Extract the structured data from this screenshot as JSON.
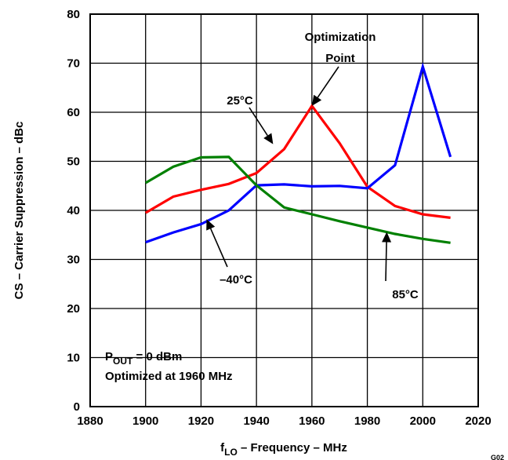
{
  "chart_data": {
    "type": "line",
    "xlabel_main": "f",
    "xlabel_sub": "LO",
    "xlabel_rest": " – Frequency – MHz",
    "ylabel": "CS – Carrier Suppression – dBc",
    "xlim": [
      1880,
      2020
    ],
    "ylim": [
      0,
      80
    ],
    "x_ticks": [
      1880,
      1900,
      1920,
      1940,
      1960,
      1980,
      2000,
      2020
    ],
    "y_ticks": [
      0,
      10,
      20,
      30,
      40,
      50,
      60,
      70,
      80
    ],
    "grid": true,
    "series": [
      {
        "name": "25°C",
        "color": "#ff0000",
        "x": [
          1900,
          1910,
          1920,
          1930,
          1940,
          1950,
          1960,
          1970,
          1980,
          1990,
          2000,
          2010
        ],
        "y": [
          39.5,
          42.8,
          44.2,
          45.4,
          47.6,
          52.5,
          61.3,
          53.7,
          44.8,
          40.9,
          39.2,
          38.5
        ]
      },
      {
        "name": "–40°C",
        "color": "#0000ff",
        "x": [
          1900,
          1910,
          1920,
          1930,
          1940,
          1950,
          1960,
          1970,
          1980,
          1990,
          2000,
          2010
        ],
        "y": [
          33.5,
          35.5,
          37.2,
          40.0,
          45.1,
          45.3,
          44.9,
          45.0,
          44.5,
          49.2,
          69.3,
          50.9
        ]
      },
      {
        "name": "85°C",
        "color": "#008000",
        "x": [
          1900,
          1910,
          1920,
          1930,
          1940,
          1950,
          1960,
          1970,
          1980,
          1990,
          2000,
          2010
        ],
        "y": [
          45.6,
          48.9,
          50.8,
          50.9,
          45.1,
          40.6,
          39.2,
          37.8,
          36.5,
          35.2,
          34.2,
          33.4
        ]
      }
    ],
    "annotations": {
      "optimization_line1": "Optimization",
      "optimization_line2": "Point",
      "label_25": "25°C",
      "label_m40": "–40°C",
      "label_85": "85°C",
      "condition_p": "P",
      "condition_p_sub": "OUT",
      "condition_p_rest": " = 0 dBm",
      "condition_opt": "Optimized at 1960 MHz"
    },
    "figure_id": "G02"
  }
}
